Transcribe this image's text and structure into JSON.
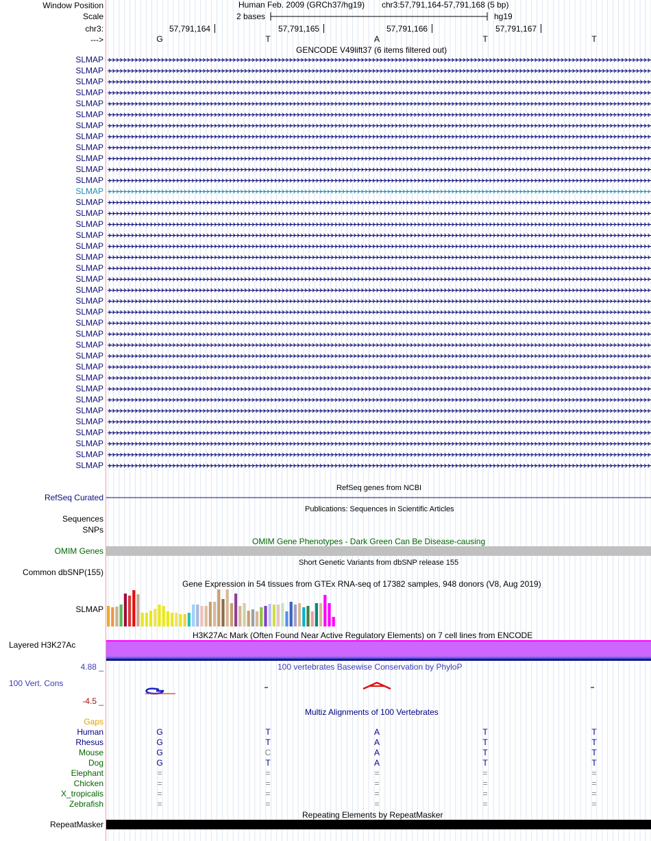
{
  "header": {
    "window_position_label": "Window Position",
    "scale_label": "Scale",
    "chrom_label": "chr3:",
    "strand_label": "--->",
    "assembly_text": "Human Feb. 2009 (GRCh37/hg19)",
    "position_text": "chr3:57,791,164-57,791,168 (5 bp)",
    "scale_text": "2 bases",
    "db_text": "hg19",
    "coords": [
      "57,791,164",
      "57,791,165",
      "57,791,166",
      "57,791,167"
    ],
    "bases": [
      "G",
      "T",
      "A",
      "T",
      "T"
    ]
  },
  "gencode": {
    "title": "GENCODE V49lift37 (6 items filtered out)",
    "gene_labels": [
      "SLMAP",
      "SLMAP",
      "SLMAP",
      "SLMAP",
      "SLMAP",
      "SLMAP",
      "SLMAP",
      "SLMAP",
      "SLMAP",
      "SLMAP",
      "SLMAP",
      "SLMAP",
      "SLMAP",
      "SLMAP",
      "SLMAP",
      "SLMAP",
      "SLMAP",
      "SLMAP",
      "SLMAP",
      "SLMAP",
      "SLMAP",
      "SLMAP",
      "SLMAP",
      "SLMAP",
      "SLMAP",
      "SLMAP",
      "SLMAP",
      "SLMAP",
      "SLMAP",
      "SLMAP",
      "SLMAP",
      "SLMAP",
      "SLMAP",
      "SLMAP",
      "SLMAP",
      "SLMAP",
      "SLMAP",
      "SLMAP"
    ],
    "highlighted_index": 12,
    "colors": {
      "normal": "#0c0c78",
      "highlight": "#1a8cb0"
    }
  },
  "refseq": {
    "title": "RefSeq genes from NCBI",
    "label": "RefSeq Curated"
  },
  "publications": {
    "title": "Publications: Sequences in Scientific Articles",
    "label": "Sequences"
  },
  "snps_label": "SNPs",
  "omim": {
    "title": "OMIM Gene Phenotypes - Dark Green Can Be Disease-causing",
    "label": "OMIM Genes",
    "color": "#006400"
  },
  "dbsnp": {
    "title": "Short Genetic Variants from dbSNP release 155",
    "label": "Common dbSNP(155)"
  },
  "gtex": {
    "title": "Gene Expression in 54 tissues from GTEx RNA-seq of 17382 samples, 948 donors (V8, Aug 2019)",
    "label": "SLMAP"
  },
  "chart_data": {
    "type": "bar",
    "values": [
      30,
      28,
      29,
      32,
      48,
      45,
      53,
      47,
      20,
      20,
      23,
      26,
      32,
      30,
      22,
      20,
      20,
      18,
      18,
      20,
      32,
      32,
      30,
      30,
      36,
      36,
      54,
      40,
      54,
      34,
      48,
      30,
      34,
      23,
      25,
      22,
      28,
      30,
      33,
      32,
      32,
      34,
      22,
      36,
      32,
      34,
      28,
      30,
      22,
      34,
      34,
      46,
      34,
      14
    ],
    "colors": [
      "#f5a623",
      "#e8974a",
      "#c8b48a",
      "#5cb85c",
      "#a00b38",
      "#d63838",
      "#e80c0c",
      "#c9a88c",
      "#e8e81c",
      "#e8e81c",
      "#e8e81c",
      "#f0e060",
      "#e8e81c",
      "#e8e81c",
      "#e8e81c",
      "#e8e81c",
      "#f0e060",
      "#e8e81c",
      "#f0d040",
      "#20c0c0",
      "#a0d0ff",
      "#a8b8d8",
      "#f0c0c0",
      "#d8c0a0",
      "#c8a070",
      "#d8b898",
      "#c8a070",
      "#8b6b4a",
      "#d8b898",
      "#c8a070",
      "#904090",
      "#d8b898",
      "#cfcfa8",
      "#c8a070",
      "#a0a0a0",
      "#d8b898",
      "#90c040",
      "#8040c0",
      "#c0c0ff",
      "#d0e040",
      "#f0c0c0",
      "#c0e8c0",
      "#5090f0",
      "#4060c0",
      "#a0a0c8",
      "#d8b898",
      "#00b0d0",
      "#408040",
      "#e8a0a0",
      "#0a8a6a",
      "#d8b898",
      "#ff00ff",
      "#ff00ff",
      "#ff00ff"
    ]
  },
  "h3k27ac": {
    "title": "H3K27Ac Mark (Often Found Near Active Regulatory Elements) on 7 cell lines from ENCODE",
    "label": "Layered H3K27Ac",
    "color": "#cc66ff"
  },
  "phylop": {
    "title": "100 vertebrates Basewise Conservation by PhyloP",
    "label": "100 Vert. Cons",
    "max_label": "4.88 _",
    "min_label": "-4.5 _"
  },
  "multiz": {
    "title": "Multiz Alignments of 100 Vertebrates",
    "gaps_label": "Gaps",
    "species": [
      {
        "name": "Human",
        "bases": [
          "G",
          "T",
          "A",
          "T",
          "T"
        ],
        "color": "#000080"
      },
      {
        "name": "Rhesus",
        "bases": [
          "G",
          "T",
          "A",
          "T",
          "T"
        ],
        "color": "#000080"
      },
      {
        "name": "Mouse",
        "bases": [
          "G",
          "C",
          "A",
          "T",
          "T"
        ],
        "color": "#006400"
      },
      {
        "name": "Dog",
        "bases": [
          "G",
          "T",
          "A",
          "T",
          "T"
        ],
        "color": "#006400"
      },
      {
        "name": "Elephant",
        "bases": [
          "=",
          "=",
          "=",
          "=",
          "="
        ],
        "color": "#006400"
      },
      {
        "name": "Chicken",
        "bases": [
          "=",
          "=",
          "=",
          "=",
          "="
        ],
        "color": "#006400"
      },
      {
        "name": "X_tropicalis",
        "bases": [
          "=",
          "=",
          "=",
          "=",
          "="
        ],
        "color": "#006400"
      },
      {
        "name": "Zebrafish",
        "bases": [
          "=",
          "=",
          "=",
          "=",
          "="
        ],
        "color": "#006400"
      }
    ]
  },
  "repeatmasker": {
    "title": "Repeating Elements by RepeatMasker",
    "label": "RepeatMasker"
  }
}
